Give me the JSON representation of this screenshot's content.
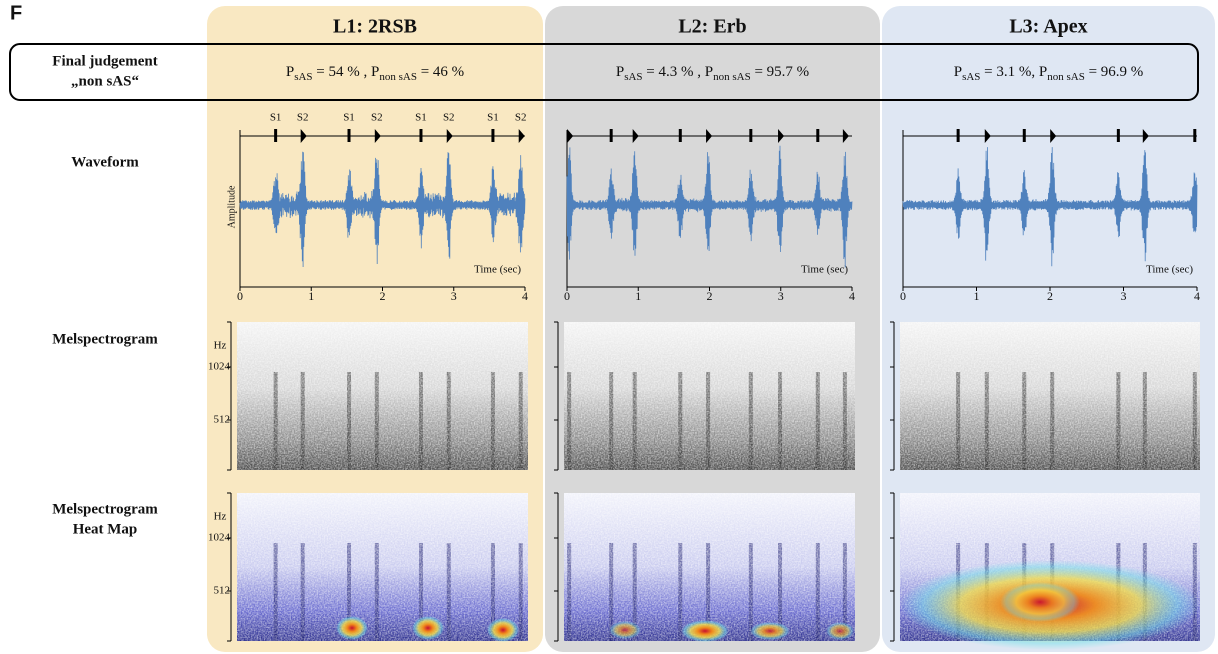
{
  "panel_label": "F",
  "row_labels": {
    "final_judgement": "Final judgement",
    "verdict": "„non sAS“",
    "waveform": "Waveform",
    "melspectrogram": "Melspectrogram",
    "heat_map": [
      "Melspectrogram",
      "Heat Map"
    ]
  },
  "axis_labels": {
    "amplitude": "Amplitude",
    "time": "Time (sec)",
    "hz": "Hz"
  },
  "waveform_xticks": [
    0,
    1,
    2,
    3,
    4
  ],
  "mel_yticks": [
    1024,
    512
  ],
  "marker_labels": [
    "S1",
    "S2"
  ],
  "probability_terms": {
    "p": "P",
    "sas": "sAS",
    "non_sas": "non sAS",
    "equals": " = "
  },
  "locations": [
    {
      "title": "L1: 2RSB",
      "p_sas": "54 %",
      "p_non_sas": "46 %",
      "separator": " , ",
      "show_marker_labels": true,
      "s1_times": [
        0.5,
        1.53,
        2.54,
        3.55
      ],
      "s2_times": [
        0.88,
        1.92,
        2.93,
        3.94
      ]
    },
    {
      "title": "L2: Erb",
      "p_sas": "4.3 %",
      "p_non_sas": "95.7 %",
      "separator": " , ",
      "show_marker_labels": false,
      "s1_times": [
        0.62,
        1.59,
        2.58,
        3.52
      ],
      "s2_times": [
        0.03,
        0.95,
        1.98,
        2.99,
        3.9
      ]
    },
    {
      "title": "L3: Apex",
      "p_sas": "3.1 %",
      "p_non_sas": "96.9 %",
      "separator": ", ",
      "show_marker_labels": false,
      "s1_times": [
        0.75,
        1.65,
        2.93,
        3.97
      ],
      "s2_times": [
        1.14,
        2.03,
        3.29
      ]
    }
  ]
}
